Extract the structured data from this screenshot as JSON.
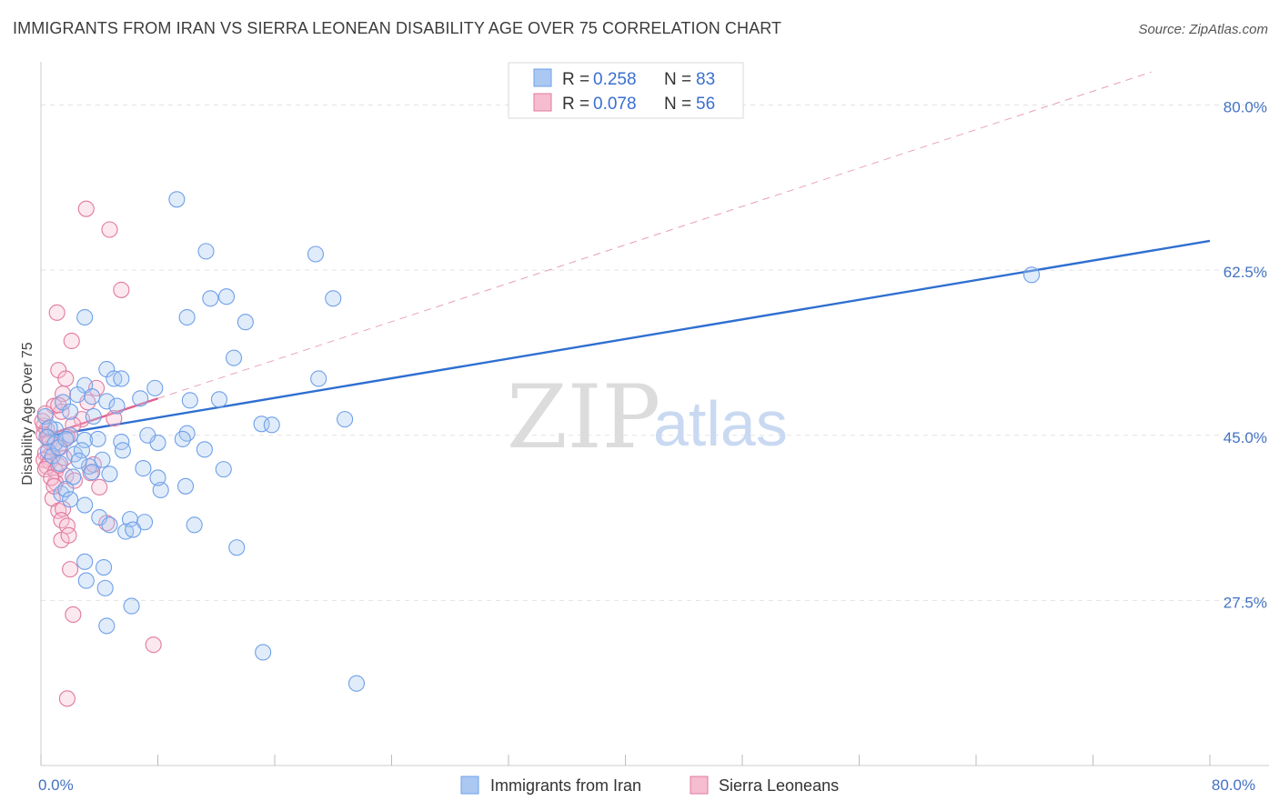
{
  "title": "IMMIGRANTS FROM IRAN VS SIERRA LEONEAN DISABILITY AGE OVER 75 CORRELATION CHART",
  "source": "Source: ZipAtlas.com",
  "watermark": {
    "zip": "ZIP",
    "atlas": "atlas"
  },
  "chart_data": {
    "type": "scatter",
    "title": "IMMIGRANTS FROM IRAN VS SIERRA LEONEAN DISABILITY AGE OVER 75 CORRELATION CHART",
    "xlabel": "",
    "ylabel": "Disability Age Over 75",
    "xlim": [
      0,
      80
    ],
    "ylim": [
      10,
      84
    ],
    "x_tick_labels": [
      {
        "value": 0,
        "label": "0.0%"
      },
      {
        "value": 80,
        "label": "80.0%"
      }
    ],
    "y_ticks": [
      {
        "value": 27.5,
        "label": "27.5%"
      },
      {
        "value": 45.0,
        "label": "45.0%"
      },
      {
        "value": 62.5,
        "label": "62.5%"
      },
      {
        "value": 80.0,
        "label": "80.0%"
      }
    ],
    "legend": [
      {
        "name": "Immigrants from Iran",
        "r_label": "R =",
        "r_value": "0.258",
        "n_label": "N =",
        "n_value": "83",
        "color": "#6fa0e8",
        "fill": "#aac8f2"
      },
      {
        "name": "Sierra Leoneans",
        "r_label": "R =",
        "r_value": "0.078",
        "n_label": "N =",
        "n_value": "56",
        "color": "#e07aa0",
        "fill": "#f6bcd0"
      }
    ],
    "series": [
      {
        "name": "Immigrants from Iran",
        "color": "#6fa0e8",
        "points": [
          [
            9.3,
            70.0
          ],
          [
            11.3,
            64.5
          ],
          [
            11.6,
            59.5
          ],
          [
            12.7,
            59.7
          ],
          [
            18.8,
            64.2
          ],
          [
            20.0,
            59.5
          ],
          [
            14.0,
            57.0
          ],
          [
            10.0,
            57.5
          ],
          [
            13.2,
            53.2
          ],
          [
            19.0,
            51.0
          ],
          [
            3.0,
            57.5
          ],
          [
            4.5,
            52.0
          ],
          [
            5.0,
            51.0
          ],
          [
            5.5,
            51.0
          ],
          [
            3.0,
            50.3
          ],
          [
            2.5,
            49.3
          ],
          [
            3.5,
            49.1
          ],
          [
            4.5,
            48.6
          ],
          [
            5.2,
            48.1
          ],
          [
            1.5,
            48.5
          ],
          [
            2.0,
            47.5
          ],
          [
            3.6,
            47.0
          ],
          [
            1.0,
            45.6
          ],
          [
            2.0,
            45.0
          ],
          [
            3.0,
            44.5
          ],
          [
            5.5,
            44.3
          ],
          [
            7.8,
            50.0
          ],
          [
            6.8,
            48.9
          ],
          [
            10.2,
            48.7
          ],
          [
            12.2,
            48.8
          ],
          [
            15.1,
            46.2
          ],
          [
            15.8,
            46.1
          ],
          [
            20.8,
            46.7
          ],
          [
            10.0,
            45.2
          ],
          [
            9.7,
            44.6
          ],
          [
            8.0,
            44.2
          ],
          [
            7.3,
            45.0
          ],
          [
            5.6,
            43.4
          ],
          [
            0.3,
            47.0
          ],
          [
            0.6,
            45.8
          ],
          [
            1.0,
            44.2
          ],
          [
            0.5,
            43.3
          ],
          [
            0.8,
            42.8
          ],
          [
            1.2,
            43.7
          ],
          [
            1.7,
            44.6
          ],
          [
            2.3,
            43.0
          ],
          [
            2.8,
            43.4
          ],
          [
            3.3,
            41.7
          ],
          [
            3.5,
            41.1
          ],
          [
            4.2,
            42.4
          ],
          [
            4.7,
            40.9
          ],
          [
            2.2,
            40.6
          ],
          [
            1.4,
            38.8
          ],
          [
            1.7,
            39.3
          ],
          [
            2.0,
            38.2
          ],
          [
            3.0,
            37.6
          ],
          [
            4.0,
            36.3
          ],
          [
            4.7,
            35.5
          ],
          [
            6.1,
            36.1
          ],
          [
            7.1,
            35.8
          ],
          [
            8.2,
            39.2
          ],
          [
            9.9,
            39.6
          ],
          [
            10.5,
            35.5
          ],
          [
            5.8,
            34.8
          ],
          [
            6.3,
            35.0
          ],
          [
            11.2,
            43.5
          ],
          [
            12.5,
            41.4
          ],
          [
            13.4,
            33.1
          ],
          [
            3.0,
            31.6
          ],
          [
            4.3,
            31.0
          ],
          [
            4.4,
            28.8
          ],
          [
            3.1,
            29.6
          ],
          [
            6.2,
            26.9
          ],
          [
            4.5,
            24.8
          ],
          [
            15.2,
            22.0
          ],
          [
            21.6,
            18.7
          ],
          [
            67.8,
            62.0
          ],
          [
            7.0,
            41.5
          ],
          [
            8.0,
            40.5
          ],
          [
            1.3,
            42.0
          ],
          [
            2.6,
            42.3
          ],
          [
            3.9,
            44.6
          ],
          [
            0.4,
            44.8
          ]
        ]
      },
      {
        "name": "Sierra Leoneans",
        "color": "#e07aa0",
        "points": [
          [
            3.1,
            69.0
          ],
          [
            4.7,
            66.8
          ],
          [
            5.5,
            60.4
          ],
          [
            1.1,
            58.0
          ],
          [
            2.1,
            55.0
          ],
          [
            1.2,
            51.9
          ],
          [
            1.7,
            51.0
          ],
          [
            1.5,
            49.4
          ],
          [
            0.9,
            48.1
          ],
          [
            3.2,
            48.5
          ],
          [
            3.8,
            50.0
          ],
          [
            1.4,
            47.5
          ],
          [
            2.8,
            46.7
          ],
          [
            5.0,
            46.8
          ],
          [
            0.2,
            46.0
          ],
          [
            0.4,
            45.6
          ],
          [
            0.2,
            45.1
          ],
          [
            0.5,
            44.8
          ],
          [
            0.6,
            44.3
          ],
          [
            0.9,
            44.0
          ],
          [
            1.3,
            43.7
          ],
          [
            0.3,
            43.1
          ],
          [
            0.5,
            42.7
          ],
          [
            0.2,
            42.4
          ],
          [
            0.6,
            42.2
          ],
          [
            0.4,
            41.7
          ],
          [
            0.3,
            41.4
          ],
          [
            1.0,
            41.2
          ],
          [
            1.7,
            40.7
          ],
          [
            2.3,
            40.2
          ],
          [
            3.4,
            41.0
          ],
          [
            3.6,
            41.9
          ],
          [
            4.0,
            39.5
          ],
          [
            2.0,
            45.0
          ],
          [
            2.2,
            46.1
          ],
          [
            1.8,
            44.8
          ],
          [
            1.0,
            40.0
          ],
          [
            0.8,
            38.3
          ],
          [
            1.2,
            37.0
          ],
          [
            1.5,
            37.2
          ],
          [
            1.4,
            36.0
          ],
          [
            4.5,
            35.7
          ],
          [
            1.4,
            33.9
          ],
          [
            1.8,
            35.4
          ],
          [
            1.9,
            34.4
          ],
          [
            2.0,
            30.8
          ],
          [
            2.2,
            26.0
          ],
          [
            7.7,
            22.8
          ],
          [
            1.8,
            17.1
          ],
          [
            1.2,
            48.2
          ],
          [
            0.1,
            46.5
          ],
          [
            0.3,
            47.3
          ],
          [
            1.2,
            41.8
          ],
          [
            0.7,
            40.5
          ],
          [
            1.6,
            42.6
          ],
          [
            0.9,
            39.6
          ]
        ]
      }
    ],
    "trendlines": [
      {
        "series": "Immigrants from Iran",
        "style": "solid",
        "color": "#2f6fd0",
        "from": [
          0,
          44.8
        ],
        "to": [
          80,
          65.6
        ]
      },
      {
        "series": "Sierra Leoneans",
        "style": "solid",
        "color": "#e0608e",
        "from": [
          0,
          44.8
        ],
        "to": [
          8,
          48.9
        ]
      },
      {
        "series": "Sierra Leoneans",
        "style": "dashed",
        "color": "#e8a0b8",
        "from": [
          8,
          48.9
        ],
        "to": [
          76,
          83.5
        ]
      }
    ]
  }
}
